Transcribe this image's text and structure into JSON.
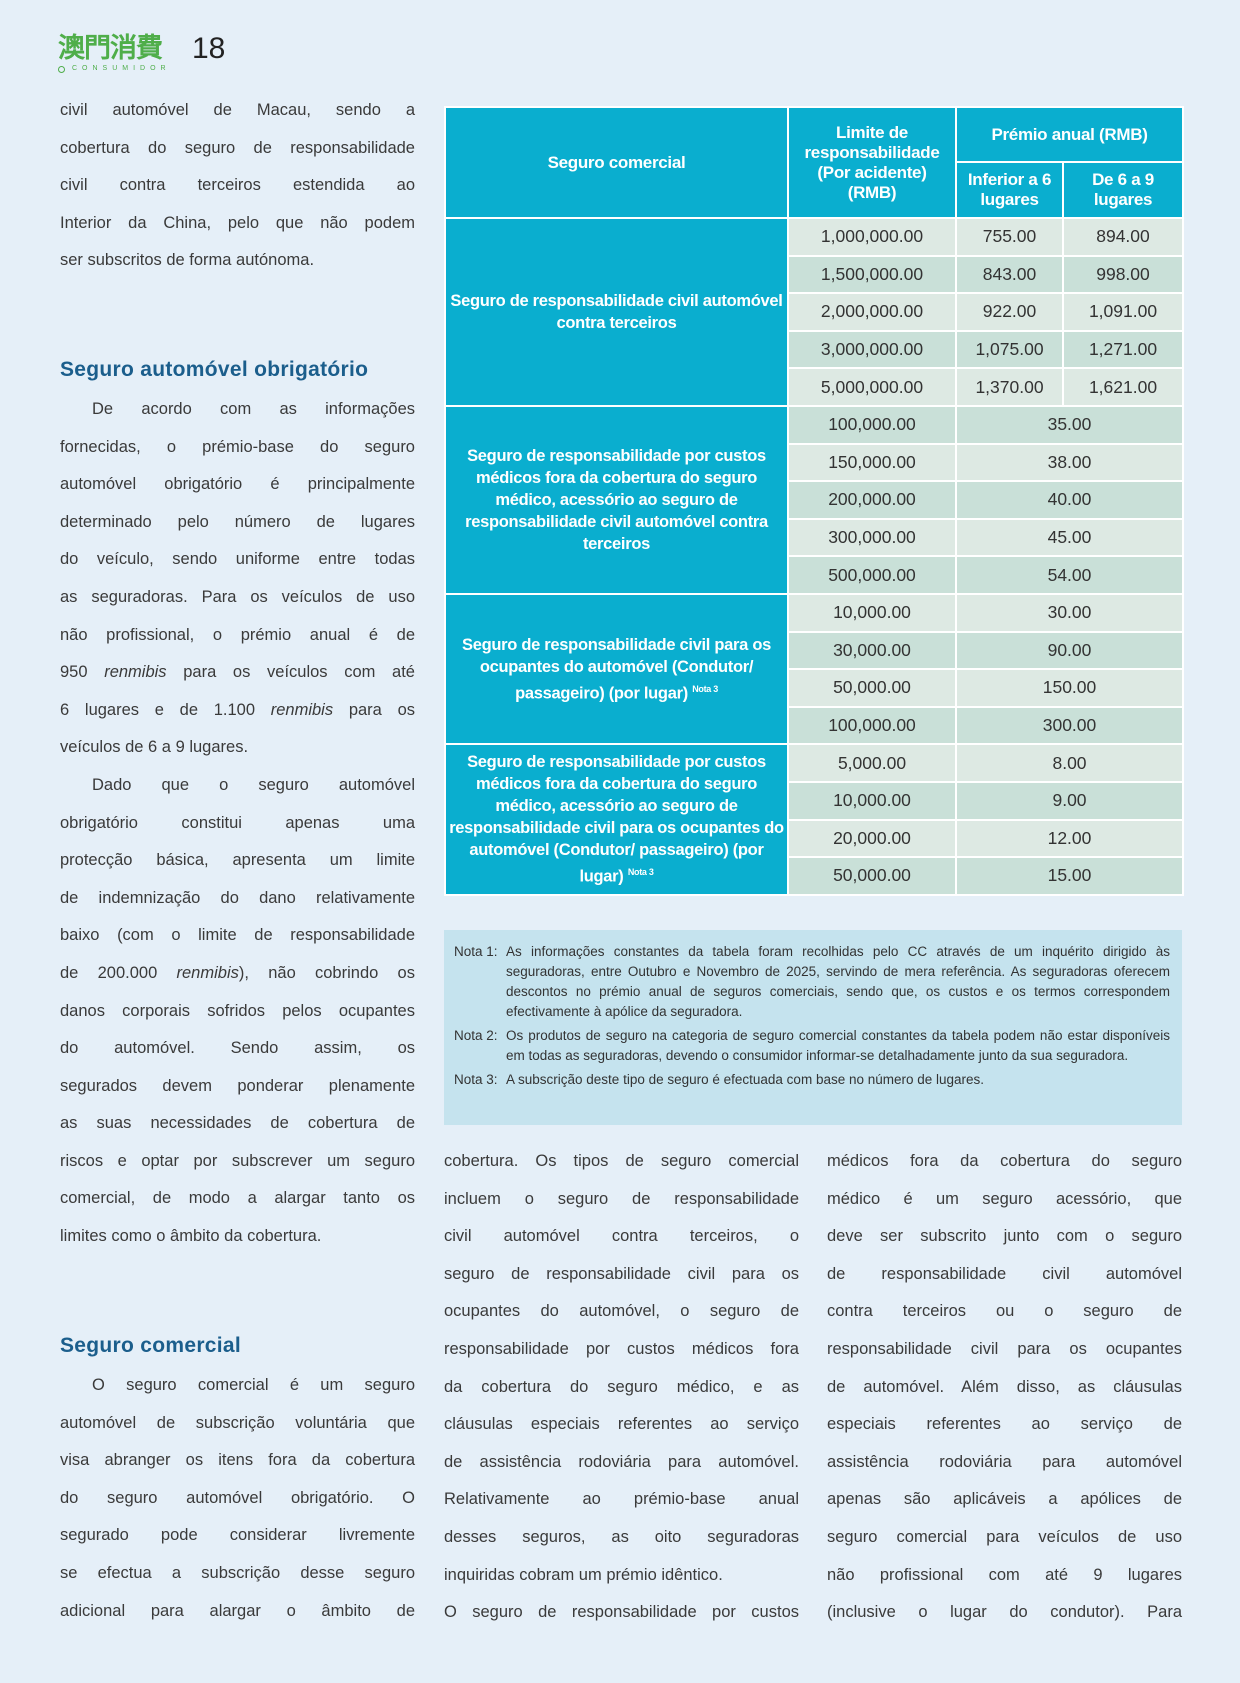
{
  "header": {
    "logo_cn": "澳門消費",
    "logo_en": "CONSUMIDOR",
    "page_number": "18"
  },
  "colors": {
    "accent": "#0aaecf",
    "heading": "#1b5e8c",
    "logo_green": "#4fae4a",
    "notes_bg": "#c5e3ee"
  },
  "col1": {
    "block1": [
      "civil automóvel de Macau, sendo a",
      "cobertura do seguro de responsabilidade",
      "civil contra terceiros estendida ao",
      "Interior da China, pelo que não podem",
      "ser subscritos de forma autónoma."
    ],
    "heading1": "Seguro automóvel obrigatório",
    "block2": [
      "De acordo com as informações",
      "fornecidas, o prémio-base do seguro",
      "automóvel obrigatório é principalmente",
      "determinado pelo número de lugares",
      "do veículo, sendo uniforme entre todas",
      "as seguradoras. Para os veículos de uso",
      "não profissional, o prémio anual é de",
      {
        "pre": "950 ",
        "it": "renmibis",
        "post": " para os veículos com até"
      },
      {
        "pre": "6 lugares e de 1.100 ",
        "it": "renmibis",
        "post": " para os"
      },
      "veículos de 6 a 9 lugares.",
      "Dado que o seguro automóvel",
      "obrigatório constitui apenas uma",
      "protecção básica, apresenta um limite",
      "de indemnização do dano relativamente",
      "baixo (com o limite de responsabilidade",
      {
        "pre": "de 200.000 ",
        "it": "renmibis",
        "post": "), não cobrindo os"
      },
      "danos corporais sofridos pelos ocupantes",
      "do automóvel. Sendo assim, os",
      "segurados devem ponderar plenamente",
      "as suas necessidades de cobertura de",
      "riscos e optar por subscrever um seguro",
      "comercial, de modo a alargar tanto os",
      "limites como o âmbito da cobertura."
    ],
    "heading2": "Seguro comercial",
    "block3": [
      "O seguro comercial é um seguro",
      "automóvel de subscrição voluntária que",
      "visa abranger os itens fora da cobertura",
      "do seguro automóvel obrigatório. O",
      "segurado pode considerar livremente",
      "se efectua a subscrição desse seguro",
      "adicional para alargar o âmbito de"
    ]
  },
  "col2": [
    "cobertura. Os tipos de seguro comercial",
    "incluem o seguro de responsabilidade",
    "civil automóvel contra terceiros, o",
    "seguro de responsabilidade civil para os",
    "ocupantes do automóvel, o seguro de",
    "responsabilidade por custos médicos fora",
    "da cobertura do seguro médico, e as",
    "cláusulas especiais referentes ao serviço",
    "de assistência rodoviária para automóvel.",
    "Relativamente ao prémio-base anual",
    "desses seguros, as oito seguradoras",
    "inquiridas cobram um prémio idêntico.",
    "O seguro de responsabilidade por custos"
  ],
  "col3": [
    "médicos fora da cobertura do seguro",
    "médico é um seguro acessório, que",
    "deve ser subscrito junto com o seguro",
    "de responsabilidade civil automóvel",
    "contra terceiros ou o seguro de",
    "responsabilidade civil para os ocupantes",
    "de automóvel. Além disso, as cláusulas",
    "especiais referentes ao serviço de",
    "assistência rodoviária para automóvel",
    "apenas são aplicáveis a apólices de",
    "seguro comercial para veículos de uso",
    "não profissional com até 9 lugares",
    "(inclusive o lugar do condutor). Para"
  ],
  "table": {
    "headers": {
      "type": "Seguro comercial",
      "limit": "Limite de responsabilidade (Por acidente) (RMB)",
      "premium": "Prémio anual (RMB)",
      "under6": "Inferior a 6 lugares",
      "six_to_nine": "De 6 a 9 lugares"
    },
    "groups": [
      {
        "name": "Seguro de responsabilidade civil automóvel contra terceiros",
        "note": "",
        "rows": [
          [
            "1,000,000.00",
            "755.00",
            "894.00"
          ],
          [
            "1,500,000.00",
            "843.00",
            "998.00"
          ],
          [
            "2,000,000.00",
            "922.00",
            "1,091.00"
          ],
          [
            "3,000,000.00",
            "1,075.00",
            "1,271.00"
          ],
          [
            "5,000,000.00",
            "1,370.00",
            "1,621.00"
          ]
        ]
      },
      {
        "name": "Seguro de responsabilidade por custos médicos fora da cobertura do seguro médico, acessório ao seguro de responsabilidade civil automóvel contra terceiros",
        "note": "",
        "rows": [
          [
            "100,000.00",
            "35.00"
          ],
          [
            "150,000.00",
            "38.00"
          ],
          [
            "200,000.00",
            "40.00"
          ],
          [
            "300,000.00",
            "45.00"
          ],
          [
            "500,000.00",
            "54.00"
          ]
        ]
      },
      {
        "name": "Seguro de responsabilidade civil para os ocupantes do automóvel (Condutor/ passageiro) (por lugar)",
        "note": "Nota 3",
        "rows": [
          [
            "10,000.00",
            "30.00"
          ],
          [
            "30,000.00",
            "90.00"
          ],
          [
            "50,000.00",
            "150.00"
          ],
          [
            "100,000.00",
            "300.00"
          ]
        ]
      },
      {
        "name": "Seguro de responsabilidade por custos médicos fora da cobertura do seguro médico, acessório ao seguro de responsabilidade civil para os ocupantes do automóvel (Condutor/ passageiro) (por lugar)",
        "note": "Nota 3",
        "rows": [
          [
            "5,000.00",
            "8.00"
          ],
          [
            "10,000.00",
            "9.00"
          ],
          [
            "20,000.00",
            "12.00"
          ],
          [
            "50,000.00",
            "15.00"
          ]
        ]
      }
    ]
  },
  "notes": [
    {
      "label": "Nota 1:",
      "text": "As informações constantes da tabela foram recolhidas pelo CC através de um inquérito dirigido às seguradoras, entre Outubro e Novembro de 2025, servindo de mera referência. As seguradoras oferecem descontos no prémio anual de seguros comerciais, sendo que, os custos e os termos correspondem efectivamente à apólice da seguradora."
    },
    {
      "label": "Nota 2:",
      "text": "Os produtos de seguro na categoria de seguro comercial constantes da tabela podem não estar disponíveis em todas as seguradoras, devendo o consumidor informar-se detalhadamente junto da sua seguradora."
    },
    {
      "label": "Nota 3:",
      "text": "A subscrição deste tipo de seguro é efectuada com base no número de lugares."
    }
  ]
}
